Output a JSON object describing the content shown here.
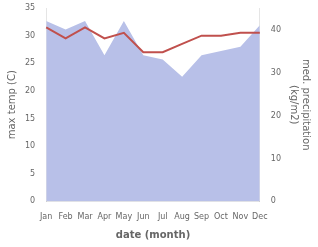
{
  "chart_data": {
    "type": "line",
    "xlabel": "date (month)",
    "ylabel": "max temp (C)",
    "y2label": "med. precipitation\n(kg/m2)",
    "categories": [
      "Jan",
      "Feb",
      "Mar",
      "Apr",
      "May",
      "Jun",
      "Jul",
      "Aug",
      "Sep",
      "Oct",
      "Nov",
      "Dec"
    ],
    "series": [
      {
        "type": "area",
        "color": "#b8c0e8",
        "axis": "y2",
        "values": [
          42,
          40,
          42,
          34,
          42,
          34,
          33,
          29,
          34,
          35,
          36,
          41
        ]
      },
      {
        "type": "line",
        "color": "#c0504d",
        "values": [
          31.5,
          29.5,
          31.5,
          29.5,
          30.5,
          27.0,
          27.0,
          28.5,
          30.0,
          30.0,
          30.5,
          30.5
        ]
      }
    ],
    "ylim": [
      0,
      35
    ],
    "yticks": [
      0,
      5,
      10,
      15,
      20,
      25,
      30,
      35
    ],
    "y2lim": [
      0,
      45
    ],
    "y2ticks": [
      0,
      10,
      20,
      30,
      40
    ],
    "grid": false
  }
}
